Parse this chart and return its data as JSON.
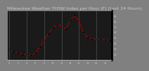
{
  "title": "Milwaukee Weather THSW Index per Hour (F) (Last 24 Hours)",
  "hours": [
    0,
    1,
    2,
    3,
    4,
    5,
    6,
    7,
    8,
    9,
    10,
    11,
    12,
    13,
    14,
    15,
    16,
    17,
    18,
    19,
    20,
    21,
    22,
    23
  ],
  "values": [
    28,
    24,
    22,
    20,
    19,
    18,
    22,
    33,
    45,
    58,
    68,
    74,
    70,
    66,
    82,
    90,
    80,
    60,
    50,
    48,
    47,
    47,
    46,
    45
  ],
  "line_color": "#ff0000",
  "fig_bg": "#808080",
  "plot_bg": "#1a1a1a",
  "grid_color": "#999999",
  "text_color": "#cccccc",
  "ylim": [
    10,
    100
  ],
  "yticks": [
    20,
    30,
    40,
    50,
    60,
    70,
    80,
    90
  ],
  "ytick_labels": [
    "20",
    "30",
    "40",
    "50",
    "60",
    "70",
    "80",
    "90"
  ],
  "xtick_step": 4,
  "title_fontsize": 4.5
}
